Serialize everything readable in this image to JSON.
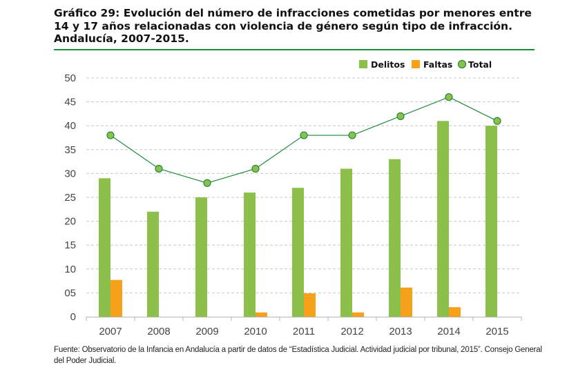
{
  "title": "Gráfico 29: Evolución del número de infracciones cometidas por menores entre 14 y 17 años relacionadas con violencia de género según tipo de infracción. Andalucía, 2007-2015.",
  "source": "Fuente: Observatorio de la Infancia en Andalucía a partir de datos de “Estadística Judicial. Actividad judicial por tribunal, 2015”. Consejo General del Poder Judicial.",
  "colors": {
    "delitos": "#8cc04b",
    "faltas": "#f7a11a",
    "total_fill": "#8cc04b",
    "total_line": "#1e8a3c",
    "rule": "#1e8a3c",
    "grid": "#c8c8c8"
  },
  "chart_data": {
    "type": "bar",
    "categories": [
      "2007",
      "2008",
      "2009",
      "2010",
      "2011",
      "2012",
      "2013",
      "2014",
      "2015"
    ],
    "series": [
      {
        "name": "Delitos",
        "type": "bar",
        "values": [
          29,
          22,
          25,
          26,
          27,
          31,
          33,
          41,
          40
        ]
      },
      {
        "name": "Faltas",
        "type": "bar",
        "values": [
          7.7,
          0,
          0,
          0.9,
          4.9,
          0.9,
          6.1,
          2,
          0
        ]
      },
      {
        "name": "Total",
        "type": "line",
        "values": [
          38,
          31,
          28,
          31,
          38,
          38,
          42,
          46,
          41
        ]
      }
    ],
    "ylim": [
      0,
      50
    ],
    "yticks": [
      "0",
      "05",
      "10",
      "15",
      "20",
      "25",
      "30",
      "35",
      "40",
      "45",
      "50"
    ],
    "grid": true,
    "legend_position": "top-right"
  }
}
